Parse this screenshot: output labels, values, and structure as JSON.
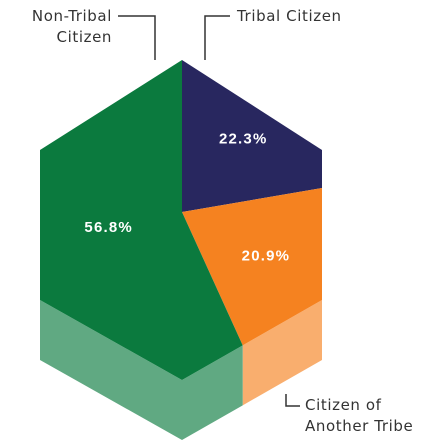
{
  "chart_data": {
    "type": "pie",
    "categories": [
      "Tribal Citizen",
      "Citizen of Another Tribe",
      "Non-Tribal Citizen"
    ],
    "values": [
      22.3,
      20.9,
      56.8
    ],
    "value_labels": [
      "22.3%",
      "20.9%",
      "56.8%"
    ],
    "colors": [
      "#28275f",
      "#f58220",
      "#0b7a3e"
    ]
  }
}
